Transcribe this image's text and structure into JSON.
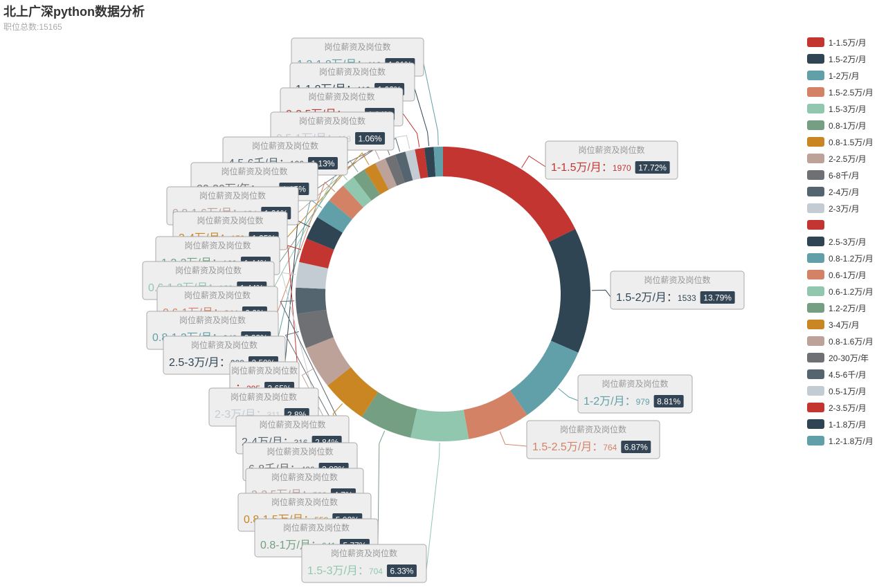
{
  "title": "北上广深python数据分析",
  "subtitle": "职位总数:15165",
  "chart_data": {
    "type": "pie",
    "subtype": "donut",
    "series_name": "岗位薪资及岗位数",
    "legend_position": "right",
    "categories": [
      "1-1.5万/月",
      "1.5-2万/月",
      "1-2万/月",
      "1.5-2.5万/月",
      "1.5-3万/月",
      "0.8-1万/月",
      "0.8-1.5万/月",
      "2-2.5万/月",
      "6-8千/月",
      "2-4万/月",
      "2-3万/月",
      "",
      "2.5-3万/月",
      "0.8-1.2万/月",
      "0.6-1万/月",
      "0.6-1.2万/月",
      "1.2-2万/月",
      "3-4万/月",
      "0.8-1.6万/月",
      "20-30万/年",
      "4.5-6千/月",
      "0.5-1万/月",
      "2-3.5万/月",
      "1-1.8万/月",
      "1.2-1.8万/月"
    ],
    "values": [
      1970,
      1533,
      979,
      764,
      704,
      641,
      558,
      522,
      426,
      316,
      311,
      295,
      288,
      248,
      244,
      160,
      160,
      150,
      134,
      128,
      126,
      118,
      115,
      113,
      112
    ],
    "percents": [
      "17.72%",
      "13.79%",
      "8.81%",
      "6.87%",
      "6.33%",
      "5.77%",
      "5.02%",
      "4.7%",
      "3.83%",
      "2.84%",
      "2.8%",
      "2.65%",
      "2.59%",
      "2.23%",
      "2.2%",
      "1.44%",
      "1.44%",
      "1.35%",
      "1.21%",
      "1.15%",
      "1.13%",
      "1.06%",
      "1.04%",
      "1.02%",
      "1.01%"
    ],
    "colors": [
      "#c23531",
      "#2f4554",
      "#61a0a8",
      "#d48265",
      "#91c7ae",
      "#749f83",
      "#ca8622",
      "#bda29a",
      "#6e7074",
      "#546570",
      "#c4ccd3",
      "#c23531",
      "#2f4554",
      "#61a0a8",
      "#d48265",
      "#91c7ae",
      "#749f83",
      "#ca8622",
      "#bda29a",
      "#6e7074",
      "#546570",
      "#c4ccd3",
      "#c23531",
      "#2f4554",
      "#61a0a8"
    ]
  }
}
